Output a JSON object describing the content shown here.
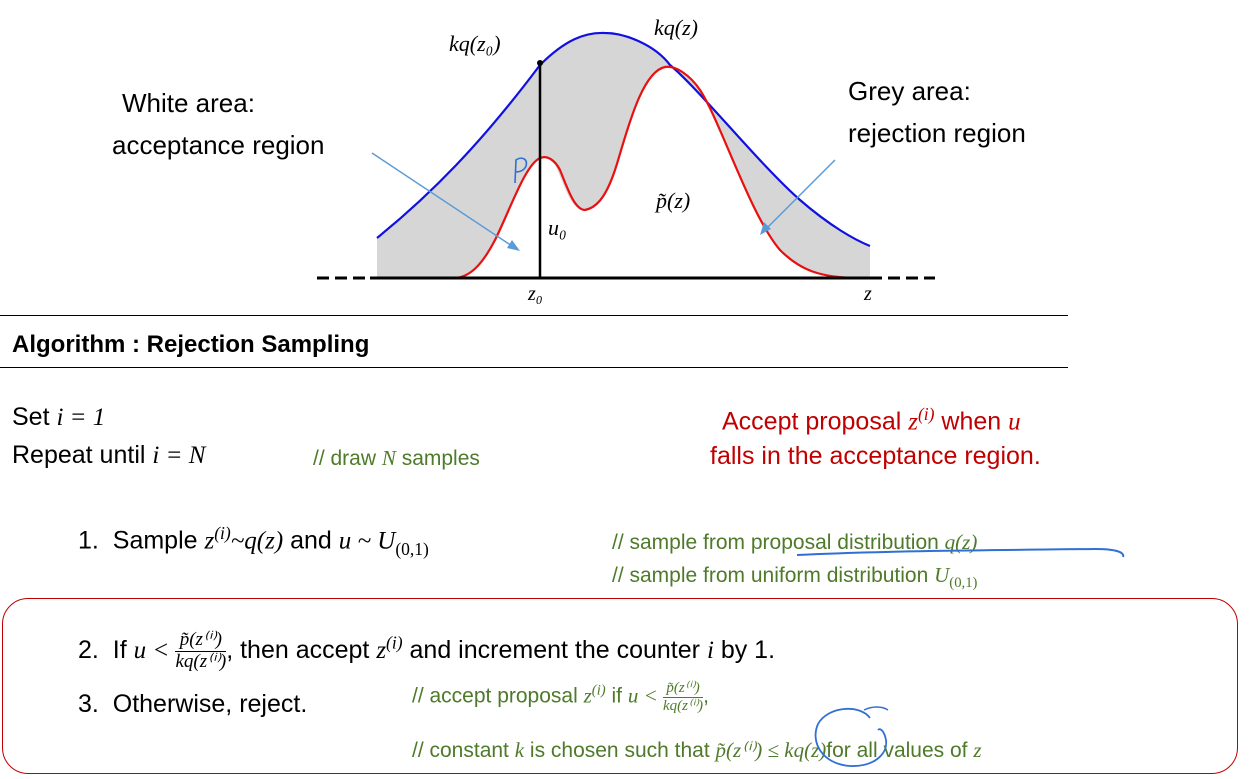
{
  "figure": {
    "label_kq_z0": "kq(z₀)",
    "label_kq_z": "kq(z)",
    "label_p_handwritten": "P",
    "label_ptilde": "p̃(z)",
    "label_u0": "u₀",
    "label_z0": "z₀",
    "label_z": "z",
    "white_area_line1": "White area:",
    "white_area_line2": "acceptance region",
    "grey_area_line1": "Grey area:",
    "grey_area_line2": "rejection region",
    "colors": {
      "envelope": "#1010e0",
      "target": "#e81010",
      "fill": "#d6d6d6",
      "arrow": "#5b9bd5"
    }
  },
  "algorithm": {
    "title": "Algorithm : Rejection Sampling",
    "set_prefix": "Set ",
    "set_math": "i = 1",
    "repeat_prefix": "Repeat until ",
    "repeat_math": "i = N",
    "repeat_comment_a": "// draw ",
    "repeat_comment_n": "N",
    "repeat_comment_b": " samples",
    "note_line1_a": "Accept proposal ",
    "note_line1_z": "z",
    "note_line1_sup": "(i)",
    "note_line1_b": " when ",
    "note_line1_u": "u",
    "note_line2": "falls in the acceptance region.",
    "step1_num": "1.",
    "step1_a": "Sample ",
    "step1_z": "z",
    "step1_sup": "(i)",
    "step1_b": "~q(z)",
    "step1_c": " and ",
    "step1_d": "u ~ U",
    "step1_sub": "(0,1)",
    "step1_comment1_a": "// sample from ",
    "step1_comment1_b": "proposal distribution ",
    "step1_comment1_c": "q(z)",
    "step1_comment2_a": "// sample from ",
    "step1_comment2_b": "uniform distribution ",
    "step1_comment2_c": "U",
    "step1_comment2_sub": "(0,1)",
    "step2_num": "2.",
    "step2_a": "If ",
    "step2_b": "u < ",
    "step2_frac_num": "p̃(z⁽ⁱ⁾)",
    "step2_frac_den": "kq(z⁽ⁱ⁾)",
    "step2_c": ", then accept ",
    "step2_z": "z",
    "step2_sup": "(i)",
    "step2_d": " and increment the counter ",
    "step2_i": "i",
    "step2_e": " by 1.",
    "step3_num": "3.",
    "step3_text": "Otherwise, reject.",
    "step3_comment1_a": "// accept proposal ",
    "step3_comment1_z": "z",
    "step3_comment1_sup": "(i)",
    "step3_comment1_b": " if ",
    "step3_comment1_c": "u < ",
    "step3_comment1_frac_num": "p̃(z⁽ⁱ⁾)",
    "step3_comment1_frac_den": "kq(z⁽ⁱ⁾)",
    "step3_comment1_d": ",",
    "step3_comment2_a": "// constant ",
    "step3_comment2_k": "k",
    "step3_comment2_b": " is chosen such that ",
    "step3_comment2_c": "p̃(z⁽ⁱ⁾)",
    "step3_comment2_d": " ≤ kq(z)",
    "step3_comment2_e": "for all values of ",
    "step3_comment2_f": "z"
  }
}
